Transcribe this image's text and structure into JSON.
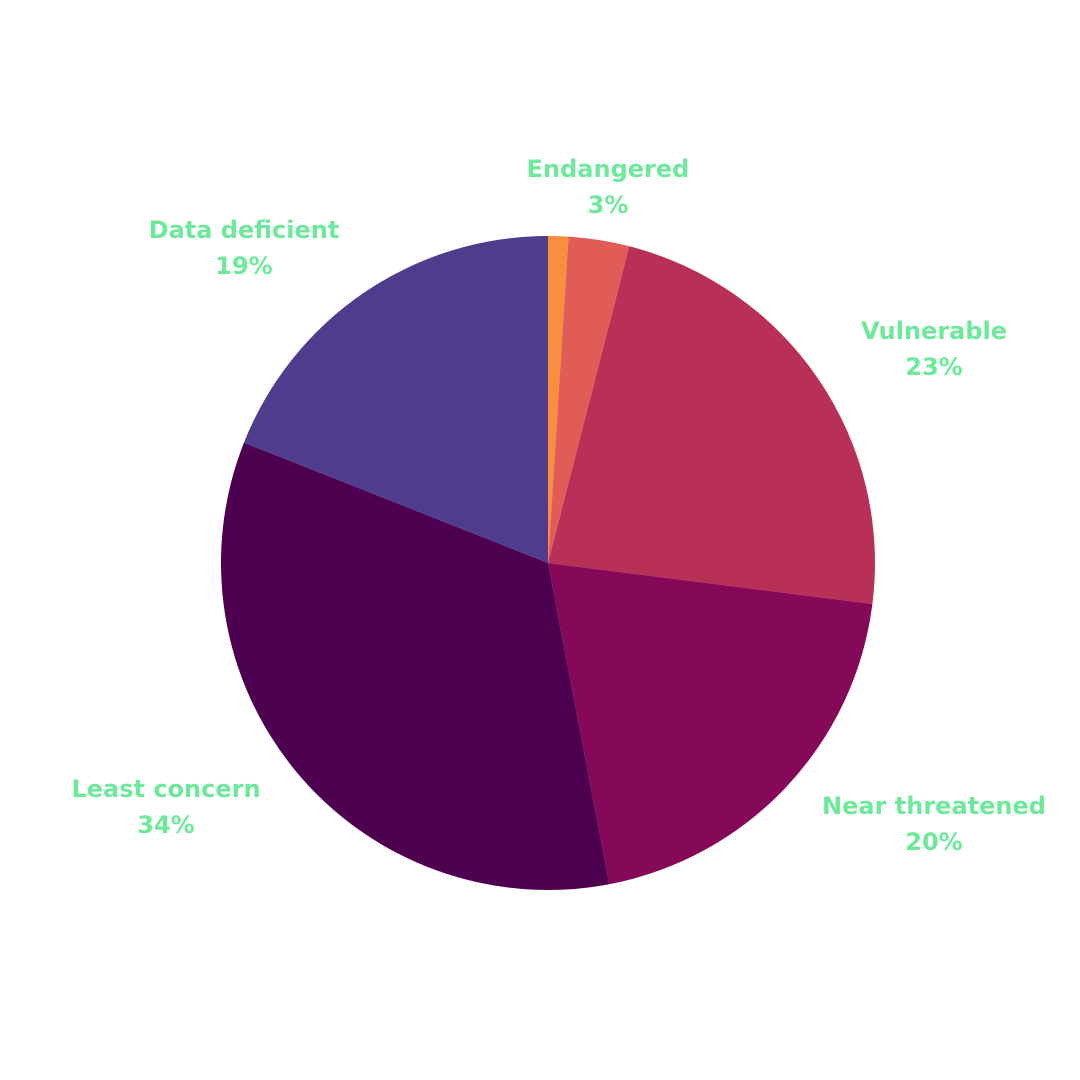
{
  "chart_data": {
    "type": "pie",
    "start_angle_deg": 0,
    "direction": "clockwise",
    "label_color": "#6ee89a",
    "slices": [
      {
        "name": "",
        "value": 1,
        "label": "",
        "percent_label": "",
        "color": "#f98e3e"
      },
      {
        "name": "Endangered",
        "value": 3,
        "label": "Endangered",
        "percent_label": "3%",
        "color": "#e25c57"
      },
      {
        "name": "Vulnerable",
        "value": 23,
        "label": "Vulnerable",
        "percent_label": "23%",
        "color": "#b83058"
      },
      {
        "name": "Near threatened",
        "value": 20,
        "label": "Near threatened",
        "percent_label": "20%",
        "color": "#850958"
      },
      {
        "name": "Least concern",
        "value": 34,
        "label": "Least concern",
        "percent_label": "34%",
        "color": "#4e0050"
      },
      {
        "name": "Data deficient",
        "value": 19,
        "label": "Data deficient",
        "percent_label": "19%",
        "color": "#4f3c8c"
      }
    ]
  }
}
